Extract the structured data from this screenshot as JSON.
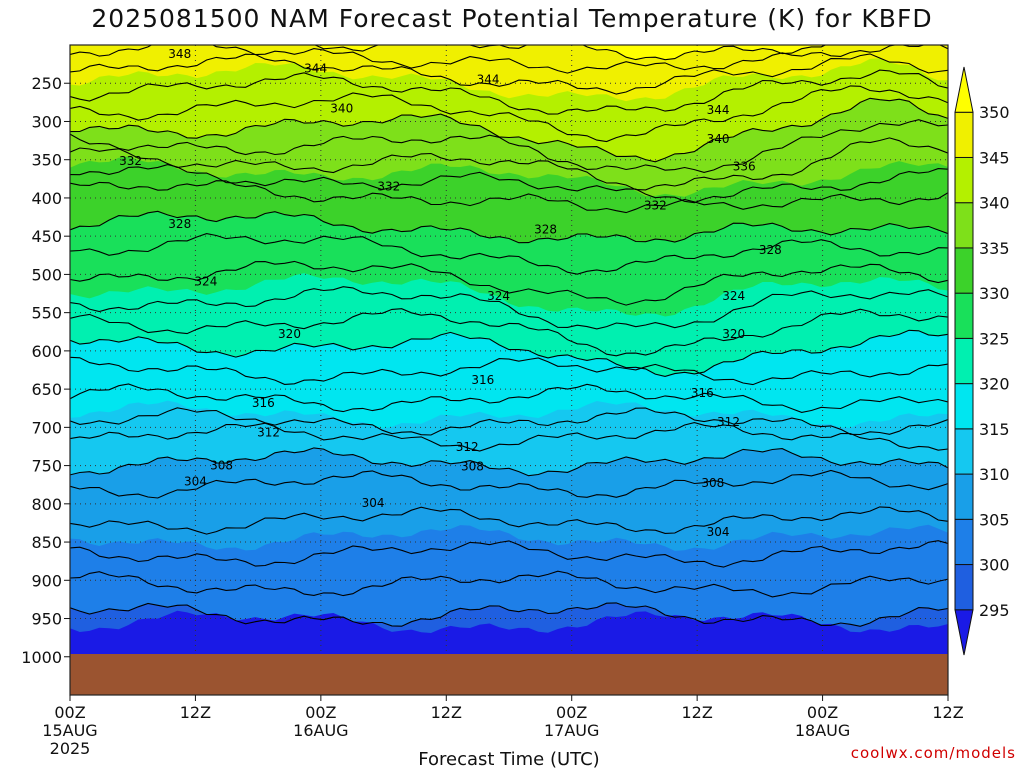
{
  "title": "2025081500 NAM Forecast Potential Temperature (K) for KBFD",
  "footer": "coolwx.com/models",
  "chart_data": {
    "type": "heatmap",
    "title": "2025081500 NAM Forecast Potential Temperature (K) for KBFD",
    "xlabel": "Forecast Time (UTC)",
    "ylabel": "",
    "x_ticks": [
      {
        "label": "00Z",
        "sub1": "15AUG",
        "sub2": "2025",
        "hour": 0
      },
      {
        "label": "12Z",
        "sub1": "",
        "sub2": "",
        "hour": 12
      },
      {
        "label": "00Z",
        "sub1": "16AUG",
        "sub2": "",
        "hour": 24
      },
      {
        "label": "12Z",
        "sub1": "",
        "sub2": "",
        "hour": 36
      },
      {
        "label": "00Z",
        "sub1": "17AUG",
        "sub2": "",
        "hour": 48
      },
      {
        "label": "12Z",
        "sub1": "",
        "sub2": "",
        "hour": 60
      },
      {
        "label": "00Z",
        "sub1": "18AUG",
        "sub2": "",
        "hour": 72
      },
      {
        "label": "12Z",
        "sub1": "",
        "sub2": "",
        "hour": 84
      }
    ],
    "xlim_hours": [
      0,
      84
    ],
    "y_ticks": [
      "250",
      "300",
      "350",
      "400",
      "450",
      "500",
      "550",
      "600",
      "650",
      "700",
      "750",
      "800",
      "850",
      "900",
      "950",
      "1000"
    ],
    "ylim_hpa": [
      200,
      1050
    ],
    "surface_pressure_hpa": 950,
    "colorbar": {
      "levels": [
        295,
        300,
        305,
        310,
        315,
        320,
        325,
        330,
        335,
        340,
        345,
        350
      ],
      "colors": [
        "#1a1ae6",
        "#1f5fe0",
        "#1e7fe8",
        "#199fe8",
        "#15c8f0",
        "#00e6f0",
        "#00f0b0",
        "#19e05a",
        "#3cd22a",
        "#7ee01a",
        "#b4f000",
        "#f0f000",
        "#ffff00"
      ]
    },
    "contour_levels": [
      300,
      304,
      308,
      312,
      316,
      320,
      324,
      328,
      332,
      336,
      340,
      344,
      348
    ],
    "contour_labels": [
      {
        "text": "348",
        "hour": 10.5,
        "p": 212
      },
      {
        "text": "344",
        "hour": 23.5,
        "p": 231
      },
      {
        "text": "344",
        "hour": 40,
        "p": 245
      },
      {
        "text": "340",
        "hour": 26,
        "p": 283
      },
      {
        "text": "344",
        "hour": 62,
        "p": 285
      },
      {
        "text": "340",
        "hour": 62,
        "p": 323
      },
      {
        "text": "332",
        "hour": 5.8,
        "p": 352
      },
      {
        "text": "336",
        "hour": 64.5,
        "p": 359
      },
      {
        "text": "332",
        "hour": 30.5,
        "p": 385
      },
      {
        "text": "332",
        "hour": 56,
        "p": 410
      },
      {
        "text": "328",
        "hour": 10.5,
        "p": 434
      },
      {
        "text": "328",
        "hour": 45.5,
        "p": 441
      },
      {
        "text": "328",
        "hour": 67,
        "p": 468
      },
      {
        "text": "324",
        "hour": 13,
        "p": 509
      },
      {
        "text": "324",
        "hour": 41,
        "p": 528
      },
      {
        "text": "324",
        "hour": 63.5,
        "p": 528
      },
      {
        "text": "320",
        "hour": 21,
        "p": 578
      },
      {
        "text": "320",
        "hour": 63.5,
        "p": 578
      },
      {
        "text": "316",
        "hour": 39.5,
        "p": 638
      },
      {
        "text": "316",
        "hour": 60.5,
        "p": 655
      },
      {
        "text": "316",
        "hour": 18.5,
        "p": 668
      },
      {
        "text": "312",
        "hour": 19,
        "p": 707
      },
      {
        "text": "312",
        "hour": 63,
        "p": 693
      },
      {
        "text": "312",
        "hour": 38,
        "p": 726
      },
      {
        "text": "308",
        "hour": 14.5,
        "p": 750
      },
      {
        "text": "308",
        "hour": 38.5,
        "p": 751
      },
      {
        "text": "308",
        "hour": 61.5,
        "p": 773
      },
      {
        "text": "304",
        "hour": 12,
        "p": 771
      },
      {
        "text": "304",
        "hour": 29,
        "p": 799
      },
      {
        "text": "304",
        "hour": 62,
        "p": 837
      }
    ],
    "grid": "dotted",
    "colorbar_position": "right"
  }
}
